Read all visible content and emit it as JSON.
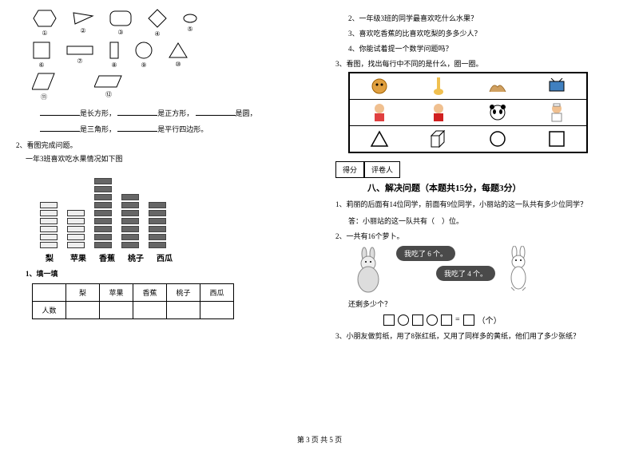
{
  "left": {
    "shapes": {
      "row1": [
        {
          "id": "①",
          "type": "hexagon"
        },
        {
          "id": "②",
          "type": "triangle-flag"
        },
        {
          "id": "③",
          "type": "rounded-rect"
        },
        {
          "id": "④",
          "type": "diamond"
        },
        {
          "id": "⑤",
          "type": "ellipse"
        }
      ],
      "row2": [
        {
          "id": "⑥",
          "type": "square"
        },
        {
          "id": "⑦",
          "type": "rect"
        },
        {
          "id": "⑧",
          "type": "tall-rect"
        },
        {
          "id": "⑨",
          "type": "circle"
        },
        {
          "id": "⑩",
          "type": "triangle"
        }
      ],
      "row3": [
        {
          "id": "⑪",
          "type": "parallelogram"
        },
        {
          "id": "⑫",
          "type": "parallelogram"
        }
      ]
    },
    "fill1_a": "是长方形，",
    "fill1_b": "是正方形，",
    "fill1_c": "是圆，",
    "fill2_a": "是三角形，",
    "fill2_b": "是平行四边形。",
    "q2_title": "2、看图完成问题。",
    "q2_sub": "一年3班喜欢吃水果情况如下图",
    "fruit_chart": {
      "categories": [
        "梨",
        "苹果",
        "香蕉",
        "桃子",
        "西瓜"
      ],
      "counts": [
        6,
        5,
        9,
        7,
        6
      ],
      "styles": [
        "light",
        "light",
        "dark",
        "dark",
        "dark"
      ],
      "block_w": 22,
      "block_h": 8
    },
    "sub1": "1、填一填",
    "table_head": [
      "",
      "梨",
      "苹果",
      "香蕉",
      "桃子",
      "西瓜"
    ],
    "table_row_label": "人数"
  },
  "right": {
    "q2": "2、一年级3班的同学最喜欢吃什么水果？",
    "q3": "3、喜欢吃香蕉的比喜欢吃梨的多多少人？",
    "q4": "4、你能试着提一个数学问题吗？",
    "q_circle": "3、看图，找出每行中不同的是什么，圈一圈。",
    "pic_rows": [
      [
        "lion",
        "giraffe",
        "camel",
        "tv"
      ],
      [
        "boy",
        "girl",
        "panda",
        "nurse"
      ],
      [
        "triangle",
        "cube",
        "circle",
        "square"
      ]
    ],
    "score_labels": [
      "得分",
      "评卷人"
    ],
    "section8": "八、解决问题（本题共15分，每题3分）",
    "p1": "1、莉丽的后面有14位同学，前面有9位同学，小丽站的这一队共有多少位同学？",
    "ans1": "答：小丽站的这一队共有（　）位。",
    "p2": "2、一共有16个萝卜。",
    "bubble1": "我吃了 6 个。",
    "bubble2": "我吃了 4 个。",
    "remain": "还剩多少个？",
    "eq_unit": "（个）",
    "p3": "3、小朋友做剪纸，用了8张红纸，又用了同样多的黄纸，他们用了多少张纸？"
  },
  "footer": "第 3 页 共 5 页",
  "colors": {
    "bubble_bg": "#4a4a4a",
    "dark_block": "#666666",
    "light_block": "#eeeeee"
  }
}
